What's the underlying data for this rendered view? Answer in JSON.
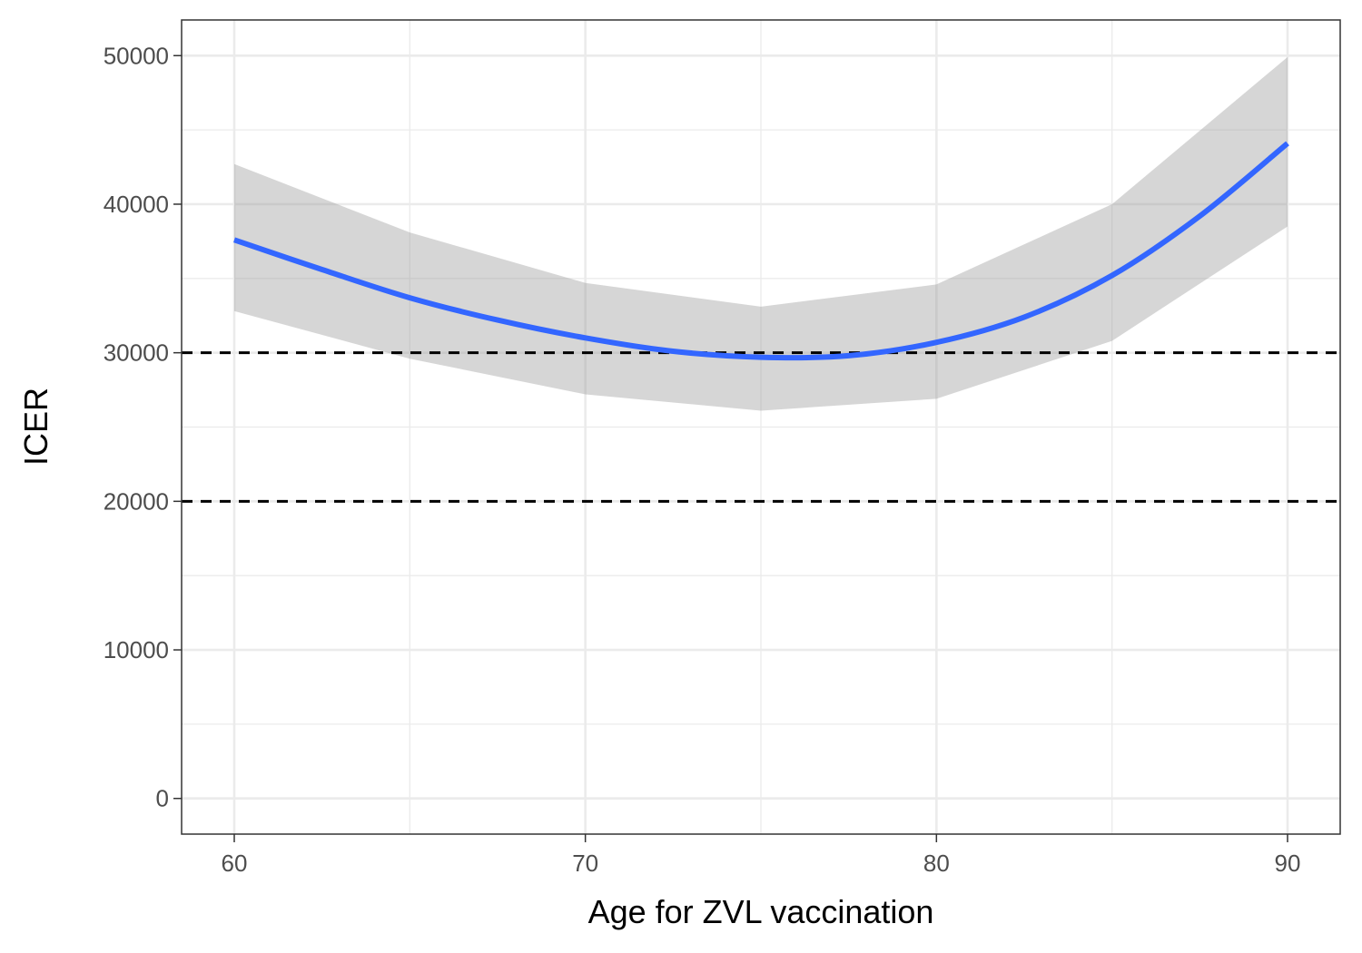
{
  "chart_data": {
    "type": "line",
    "title": "",
    "xlabel": "Age for ZVL vaccination",
    "ylabel": "ICER",
    "xlim": [
      58.5,
      91.5
    ],
    "ylim": [
      -2400,
      52400
    ],
    "x_ticks": [
      60,
      70,
      80,
      90
    ],
    "y_ticks": [
      0,
      10000,
      20000,
      30000,
      40000,
      50000
    ],
    "x_minor_ticks": [
      65,
      75,
      85
    ],
    "y_minor_ticks": [
      5000,
      15000,
      25000,
      35000,
      45000
    ],
    "grid": true,
    "legend": "none",
    "colors": {
      "line": "#3366ff",
      "band": "#999999",
      "reference": "#000000",
      "grid": "#ebebeb",
      "panel_border": "#333333"
    },
    "reference_lines": [
      {
        "y": 20000,
        "style": "dashed"
      },
      {
        "y": 30000,
        "style": "dashed"
      }
    ],
    "band": {
      "x": [
        60,
        65,
        70,
        75,
        80,
        85,
        90
      ],
      "lower": [
        32800,
        29600,
        27200,
        26100,
        26900,
        30800,
        38500
      ],
      "upper": [
        42700,
        38100,
        34700,
        33100,
        34600,
        40000,
        49900
      ]
    },
    "series": [
      {
        "x": [
          60,
          62.5,
          65,
          67.5,
          70,
          72.5,
          75,
          77.5,
          80,
          82.5,
          85,
          87.5,
          90
        ],
        "values": [
          37600,
          35600,
          33700,
          32200,
          31000,
          30100,
          29700,
          29800,
          30700,
          32400,
          35200,
          39200,
          44100
        ]
      }
    ]
  }
}
